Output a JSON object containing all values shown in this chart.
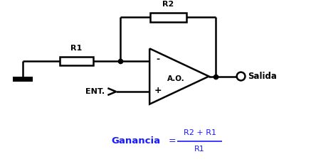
{
  "bg_color": "#ffffff",
  "line_color": "#000000",
  "ganancia_color": "#1a1aff",
  "fig_width": 4.37,
  "fig_height": 2.31,
  "dpi": 100,
  "label_R1": "R1",
  "label_R2": "R2",
  "label_AO": "A.O.",
  "label_ENT": "ENT.",
  "label_salida": "Salida",
  "label_minus": "-",
  "label_plus": "+",
  "formula_bold": "Ganancia",
  "formula_num": "R2 + R1",
  "formula_den": "R1"
}
